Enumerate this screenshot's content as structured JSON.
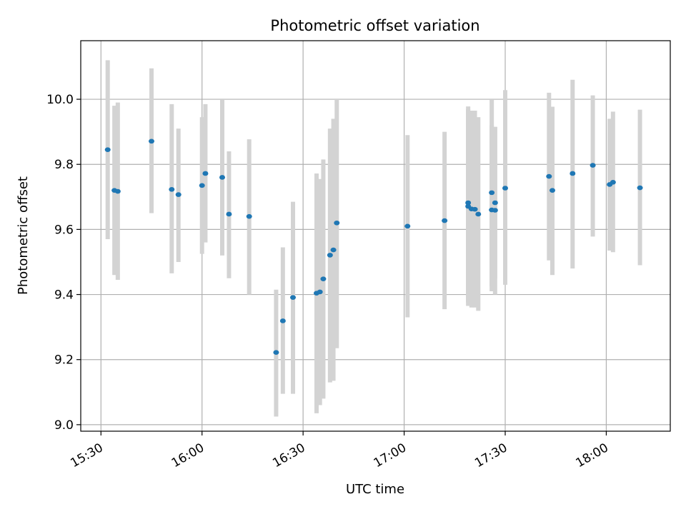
{
  "chart_data": {
    "type": "scatter",
    "title": "Photometric offset variation",
    "xlabel": "UTC time",
    "ylabel": "Photometric offset",
    "x_ticks": [
      "15:30",
      "16:00",
      "16:30",
      "17:00",
      "17:30",
      "18:00"
    ],
    "y_ticks": [
      "9.0",
      "9.2",
      "9.4",
      "9.6",
      "9.8",
      "10.0"
    ],
    "xlim": [
      "15:24",
      "18:19"
    ],
    "ylim": [
      8.98,
      10.18
    ],
    "grid": true,
    "colors": {
      "point": "#1f77b4",
      "errorbar": "#d3d3d3",
      "grid": "#b0b0b0"
    },
    "series": [
      {
        "points": [
          {
            "x": "15:32",
            "y": 9.845,
            "low": 9.57,
            "high": 10.12
          },
          {
            "x": "15:34",
            "y": 9.72,
            "low": 9.46,
            "high": 9.98
          },
          {
            "x": "15:35",
            "y": 9.717,
            "low": 9.445,
            "high": 9.99
          },
          {
            "x": "15:45",
            "y": 9.871,
            "low": 9.65,
            "high": 10.095
          },
          {
            "x": "15:51",
            "y": 9.723,
            "low": 9.465,
            "high": 9.985
          },
          {
            "x": "15:53",
            "y": 9.707,
            "low": 9.5,
            "high": 9.91
          },
          {
            "x": "16:00",
            "y": 9.735,
            "low": 9.525,
            "high": 9.945
          },
          {
            "x": "16:01",
            "y": 9.772,
            "low": 9.56,
            "high": 9.985
          },
          {
            "x": "16:06",
            "y": 9.76,
            "low": 9.52,
            "high": 9.998
          },
          {
            "x": "16:08",
            "y": 9.647,
            "low": 9.45,
            "high": 9.84
          },
          {
            "x": "16:14",
            "y": 9.64,
            "low": 9.4,
            "high": 9.877
          },
          {
            "x": "16:22",
            "y": 9.222,
            "low": 9.025,
            "high": 9.415
          },
          {
            "x": "16:24",
            "y": 9.319,
            "low": 9.095,
            "high": 9.545
          },
          {
            "x": "16:27",
            "y": 9.391,
            "low": 9.095,
            "high": 9.685
          },
          {
            "x": "16:34",
            "y": 9.404,
            "low": 9.035,
            "high": 9.772
          },
          {
            "x": "16:35",
            "y": 9.408,
            "low": 9.06,
            "high": 9.755
          },
          {
            "x": "16:36",
            "y": 9.448,
            "low": 9.08,
            "high": 9.815
          },
          {
            "x": "16:38",
            "y": 9.521,
            "low": 9.13,
            "high": 9.91
          },
          {
            "x": "16:39",
            "y": 9.537,
            "low": 9.135,
            "high": 9.94
          },
          {
            "x": "16:40",
            "y": 9.62,
            "low": 9.235,
            "high": 10.002
          },
          {
            "x": "17:01",
            "y": 9.61,
            "low": 9.33,
            "high": 9.89
          },
          {
            "x": "17:12",
            "y": 9.627,
            "low": 9.355,
            "high": 9.9
          },
          {
            "x": "17:19",
            "y": 9.671,
            "low": 9.365,
            "high": 9.978
          },
          {
            "x": "17:19",
            "y": 9.682,
            "low": 9.375,
            "high": 9.97
          },
          {
            "x": "17:20",
            "y": 9.663,
            "low": 9.36,
            "high": 9.965
          },
          {
            "x": "17:21",
            "y": 9.662,
            "low": 9.36,
            "high": 9.965
          },
          {
            "x": "17:22",
            "y": 9.647,
            "low": 9.35,
            "high": 9.945
          },
          {
            "x": "17:26",
            "y": 9.713,
            "low": 9.425,
            "high": 9.998
          },
          {
            "x": "17:26",
            "y": 9.66,
            "low": 9.41,
            "high": 9.92
          },
          {
            "x": "17:27",
            "y": 9.659,
            "low": 9.4,
            "high": 9.915
          },
          {
            "x": "17:27",
            "y": 9.682,
            "low": 9.45,
            "high": 9.915
          },
          {
            "x": "17:30",
            "y": 9.727,
            "low": 9.43,
            "high": 10.028
          },
          {
            "x": "17:43",
            "y": 9.763,
            "low": 9.505,
            "high": 10.02
          },
          {
            "x": "17:44",
            "y": 9.72,
            "low": 9.46,
            "high": 9.977
          },
          {
            "x": "17:50",
            "y": 9.772,
            "low": 9.48,
            "high": 10.06
          },
          {
            "x": "17:56",
            "y": 9.797,
            "low": 9.578,
            "high": 10.012
          },
          {
            "x": "18:01",
            "y": 9.738,
            "low": 9.535,
            "high": 9.94
          },
          {
            "x": "18:02",
            "y": 9.745,
            "low": 9.53,
            "high": 9.962
          },
          {
            "x": "18:10",
            "y": 9.728,
            "low": 9.49,
            "high": 9.968
          }
        ]
      }
    ]
  }
}
